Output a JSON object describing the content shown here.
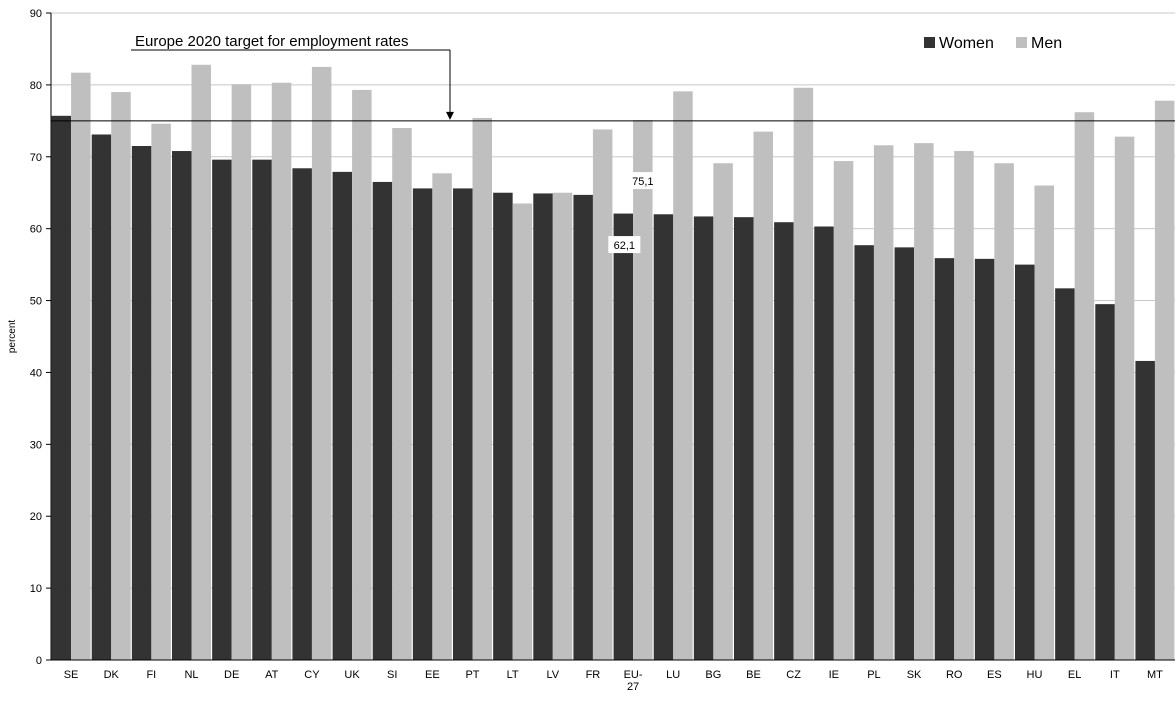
{
  "chart_data": {
    "type": "bar",
    "ylabel": "percent",
    "ylim": [
      0,
      90
    ],
    "yticks": [
      0,
      10,
      20,
      30,
      40,
      50,
      60,
      70,
      80,
      90
    ],
    "grid": "horizontal",
    "legend_position": "top-right",
    "categories": [
      "SE",
      "DK",
      "FI",
      "NL",
      "DE",
      "AT",
      "CY",
      "UK",
      "SI",
      "EE",
      "PT",
      "LT",
      "LV",
      "FR",
      "EU-27",
      "LU",
      "BG",
      "BE",
      "CZ",
      "IE",
      "PL",
      "SK",
      "RO",
      "ES",
      "HU",
      "EL",
      "IT",
      "MT"
    ],
    "series": [
      {
        "name": "Women",
        "color": "#333333",
        "values": [
          75.7,
          73.1,
          71.5,
          70.8,
          69.6,
          69.6,
          68.4,
          67.9,
          66.5,
          65.6,
          65.6,
          65.0,
          64.9,
          64.7,
          62.1,
          62.0,
          61.7,
          61.6,
          60.9,
          60.3,
          57.7,
          57.4,
          55.9,
          55.8,
          55.0,
          51.7,
          49.5,
          41.6
        ]
      },
      {
        "name": "Men",
        "color": "#bfbfbf",
        "values": [
          81.7,
          79.0,
          74.6,
          82.8,
          80.1,
          80.3,
          82.5,
          79.3,
          74.0,
          67.7,
          75.4,
          63.5,
          65.0,
          73.8,
          75.1,
          79.1,
          69.1,
          73.5,
          79.6,
          69.4,
          71.6,
          71.9,
          70.8,
          69.1,
          66.0,
          76.2,
          72.8,
          77.8
        ]
      }
    ],
    "target_line": {
      "value": 75,
      "label": "Europe 2020 target for employment rates"
    },
    "data_labels": [
      {
        "category": "EU-27",
        "series": "Men",
        "text": "75,1"
      },
      {
        "category": "EU-27",
        "series": "Women",
        "text": "62,1"
      }
    ]
  }
}
